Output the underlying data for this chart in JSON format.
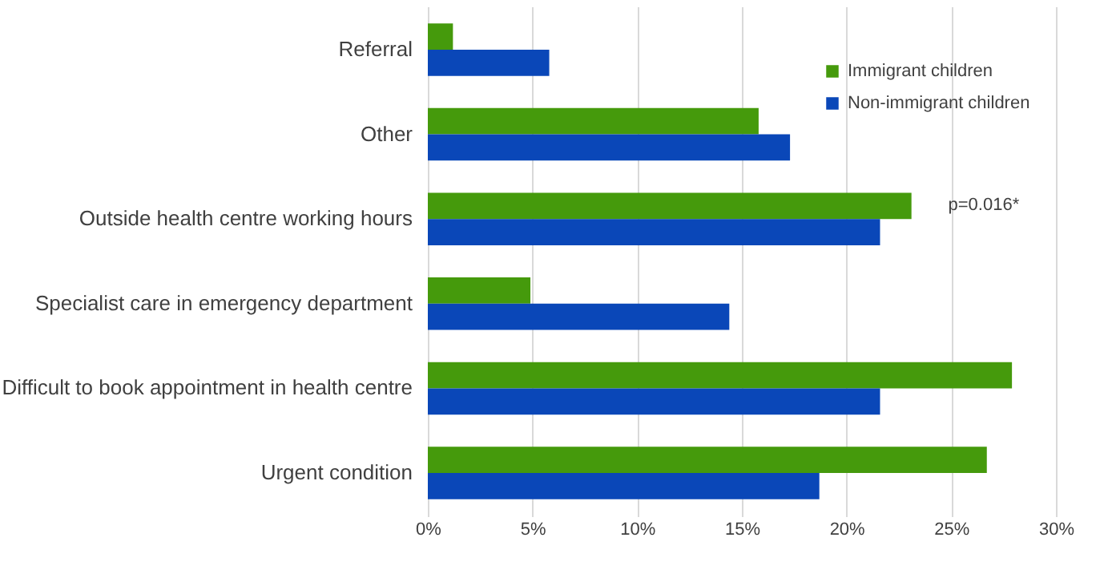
{
  "chart_data": {
    "type": "bar",
    "orientation": "horizontal",
    "categories": [
      "Referral",
      "Other",
      "Outside health centre working hours",
      "Specialist care in emergency department",
      "Difficult to book appointment in health centre",
      "Urgent condition"
    ],
    "series": [
      {
        "name": "Immigrant children",
        "color": "#459a0c",
        "values": [
          1.2,
          15.8,
          23.1,
          4.9,
          27.9,
          26.7
        ]
      },
      {
        "name": "Non-immigrant children",
        "color": "#0a47b8",
        "values": [
          5.8,
          17.3,
          21.6,
          14.4,
          21.6,
          18.7
        ]
      }
    ],
    "xlim": [
      0,
      30
    ],
    "xticks": [
      {
        "value": 0,
        "label": "0%"
      },
      {
        "value": 5,
        "label": "5%"
      },
      {
        "value": 10,
        "label": "10%"
      },
      {
        "value": 15,
        "label": "15%"
      },
      {
        "value": 20,
        "label": "20%"
      },
      {
        "value": 25,
        "label": "25%"
      },
      {
        "value": 30,
        "label": "30%"
      }
    ],
    "annotations": [
      "p=0.016*"
    ],
    "grid": "x",
    "legend": "top right"
  }
}
